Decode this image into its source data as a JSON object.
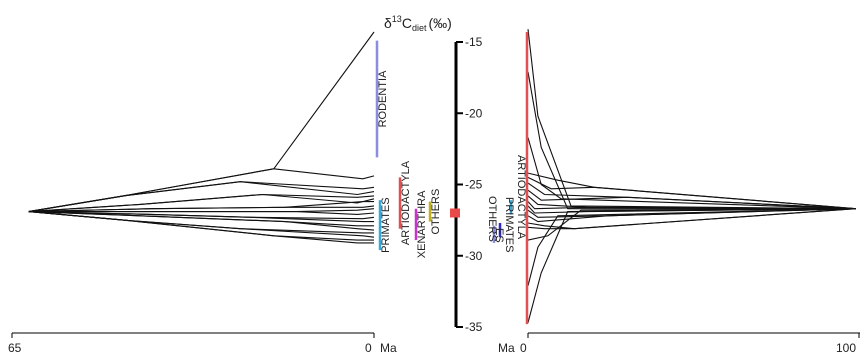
{
  "chart_data": {
    "type": "line",
    "title_main": "δ",
    "title_super": "13",
    "title_base": "C",
    "title_sub": "diet",
    "title_unit": "(‰)",
    "y_axis": {
      "ylim": [
        -35,
        -15
      ],
      "ticks": [
        -15,
        -20,
        -25,
        -30,
        -35
      ]
    },
    "left_panel": {
      "x_axis_unit": "Ma",
      "xlim": [
        65,
        0
      ],
      "tick_labels": [
        "65",
        "0"
      ],
      "root": {
        "x": 62,
        "y": -26.9
      },
      "series": [
        {
          "x": [
            62,
            45,
            18,
            0
          ],
          "y": [
            -26.9,
            -25.8,
            -23.9,
            -14.3
          ]
        },
        {
          "x": [
            62,
            45,
            18,
            2,
            0
          ],
          "y": [
            -26.9,
            -25.8,
            -23.9,
            -24.6,
            -24.4
          ]
        },
        {
          "x": [
            62,
            45,
            24,
            2,
            0
          ],
          "y": [
            -26.9,
            -25.8,
            -24.8,
            -25.3,
            -25.2
          ]
        },
        {
          "x": [
            62,
            45,
            24,
            3,
            0
          ],
          "y": [
            -26.9,
            -25.8,
            -24.8,
            -25.7,
            -25.5
          ]
        },
        {
          "x": [
            62,
            42,
            20,
            3,
            0
          ],
          "y": [
            -26.9,
            -26.4,
            -25.7,
            -26.3,
            -26.0
          ]
        },
        {
          "x": [
            62,
            42,
            20,
            3,
            0
          ],
          "y": [
            -26.9,
            -26.4,
            -25.7,
            -25.9,
            -25.8
          ]
        },
        {
          "x": [
            62,
            40,
            16,
            2,
            0
          ],
          "y": [
            -26.9,
            -26.7,
            -26.6,
            -26.2,
            -26.2
          ]
        },
        {
          "x": [
            62,
            40,
            16,
            2,
            0
          ],
          "y": [
            -26.9,
            -26.7,
            -26.6,
            -26.6,
            -26.5
          ]
        },
        {
          "x": [
            62,
            38,
            14,
            3,
            0
          ],
          "y": [
            -26.9,
            -26.9,
            -26.9,
            -27.1,
            -27.0
          ]
        },
        {
          "x": [
            62,
            38,
            14,
            3,
            0
          ],
          "y": [
            -26.9,
            -26.9,
            -26.9,
            -26.8,
            -26.7
          ]
        },
        {
          "x": [
            62,
            40,
            22,
            2,
            0
          ],
          "y": [
            -26.9,
            -27.1,
            -27.3,
            -27.4,
            -27.3
          ]
        },
        {
          "x": [
            62,
            40,
            22,
            2,
            0
          ],
          "y": [
            -26.9,
            -27.1,
            -27.3,
            -27.6,
            -27.6
          ]
        },
        {
          "x": [
            62,
            42,
            16,
            3,
            0
          ],
          "y": [
            -26.9,
            -27.2,
            -27.6,
            -27.9,
            -27.9
          ]
        },
        {
          "x": [
            62,
            42,
            16,
            3,
            0
          ],
          "y": [
            -26.9,
            -27.2,
            -27.6,
            -28.1,
            -28.2
          ]
        },
        {
          "x": [
            62,
            45,
            24,
            2,
            0
          ],
          "y": [
            -26.9,
            -27.5,
            -28.1,
            -28.4,
            -28.4
          ]
        },
        {
          "x": [
            62,
            45,
            24,
            2,
            0
          ],
          "y": [
            -26.9,
            -27.5,
            -28.1,
            -28.6,
            -28.7
          ]
        },
        {
          "x": [
            62,
            45,
            18,
            3,
            0
          ],
          "y": [
            -26.9,
            -27.5,
            -28.6,
            -29.1,
            -29.1
          ]
        },
        {
          "x": [
            62,
            45,
            18,
            3,
            0
          ],
          "y": [
            -26.9,
            -27.5,
            -28.6,
            -28.9,
            -28.9
          ]
        }
      ],
      "clades": [
        {
          "name": "RODENTIA",
          "y_top": -14.9,
          "y_bottom": -23.1,
          "color": "#8c8ce0"
        },
        {
          "name": "PRIMATES",
          "y_top": -26.1,
          "y_bottom": -29.6,
          "color": "#33aadd"
        },
        {
          "name": "ARTIODACTYLA",
          "y_top": -24.5,
          "y_bottom": -28.1,
          "color": "#e05050"
        },
        {
          "name": "XENARTHRA",
          "y_top": -26.7,
          "y_bottom": -28.9,
          "color": "#cc33cc"
        },
        {
          "name": "OTHERS",
          "y_top": -26.2,
          "y_bottom": -27.6,
          "color": "#c0b020"
        }
      ]
    },
    "right_panel": {
      "x_axis_unit": "Ma",
      "xlim": [
        0,
        100
      ],
      "tick_labels": [
        "0",
        "100"
      ],
      "root": {
        "x": 99,
        "y": -26.7
      },
      "series": [
        {
          "x": [
            0,
            3,
            13,
            99
          ],
          "y": [
            -14.1,
            -20.2,
            -26.5,
            -26.7
          ]
        },
        {
          "x": [
            0,
            4,
            12,
            99
          ],
          "y": [
            -17.1,
            -22.4,
            -26.7,
            -26.7
          ]
        },
        {
          "x": [
            0,
            4,
            10,
            99
          ],
          "y": [
            -21.7,
            -25.0,
            -26.0,
            -26.7
          ]
        },
        {
          "x": [
            0,
            9,
            20,
            99
          ],
          "y": [
            -24.2,
            -24.7,
            -25.2,
            -26.7
          ]
        },
        {
          "x": [
            0,
            7,
            20,
            99
          ],
          "y": [
            -24.5,
            -25.3,
            -25.2,
            -26.7
          ]
        },
        {
          "x": [
            0,
            5,
            30,
            99
          ],
          "y": [
            -24.9,
            -25.7,
            -25.9,
            -26.7
          ]
        },
        {
          "x": [
            0,
            4,
            30,
            99
          ],
          "y": [
            -25.4,
            -26.1,
            -25.9,
            -26.7
          ]
        },
        {
          "x": [
            0,
            3,
            18,
            99
          ],
          "y": [
            -25.8,
            -26.4,
            -26.6,
            -26.7
          ]
        },
        {
          "x": [
            0,
            2,
            18,
            99
          ],
          "y": [
            -26.2,
            -26.7,
            -26.6,
            -26.7
          ]
        },
        {
          "x": [
            0,
            2,
            18,
            99
          ],
          "y": [
            -26.5,
            -27.0,
            -26.9,
            -26.7
          ]
        },
        {
          "x": [
            0,
            3,
            24,
            99
          ],
          "y": [
            -26.8,
            -27.3,
            -27.2,
            -26.7
          ]
        },
        {
          "x": [
            0,
            3,
            24,
            99
          ],
          "y": [
            -27.2,
            -27.6,
            -27.2,
            -26.7
          ]
        },
        {
          "x": [
            0,
            5,
            14,
            99
          ],
          "y": [
            -27.7,
            -27.9,
            -28.1,
            -26.7
          ]
        },
        {
          "x": [
            0,
            5,
            14,
            99
          ],
          "y": [
            -28.0,
            -28.1,
            -28.1,
            -26.7
          ]
        },
        {
          "x": [
            0,
            6,
            16,
            99
          ],
          "y": [
            -28.9,
            -28.6,
            -26.8,
            -26.7
          ]
        },
        {
          "x": [
            0,
            3,
            9,
            99
          ],
          "y": [
            -32.1,
            -29.4,
            -27.2,
            -26.7
          ]
        },
        {
          "x": [
            0,
            4,
            12,
            99
          ],
          "y": [
            -34.7,
            -31.2,
            -26.9,
            -26.7
          ]
        }
      ],
      "clades": [
        {
          "name": "ARTIODACTYLA",
          "y_top": -14.3,
          "y_bottom": -34.8,
          "color": "#e05050"
        },
        {
          "name": "PRIMATES",
          "y_top": -26.1,
          "y_bottom": -27.1,
          "color": "#33aadd"
        },
        {
          "name": "ES",
          "y_top": -27.7,
          "y_bottom": -28.7,
          "color": "#2b2bcc"
        },
        {
          "name": "OTHERS",
          "y_top": -27.9,
          "y_bottom": -29.1,
          "color": "#8c8ce0"
        }
      ]
    },
    "center_marker": {
      "y": -27.0,
      "color": "#e84a4a"
    }
  }
}
